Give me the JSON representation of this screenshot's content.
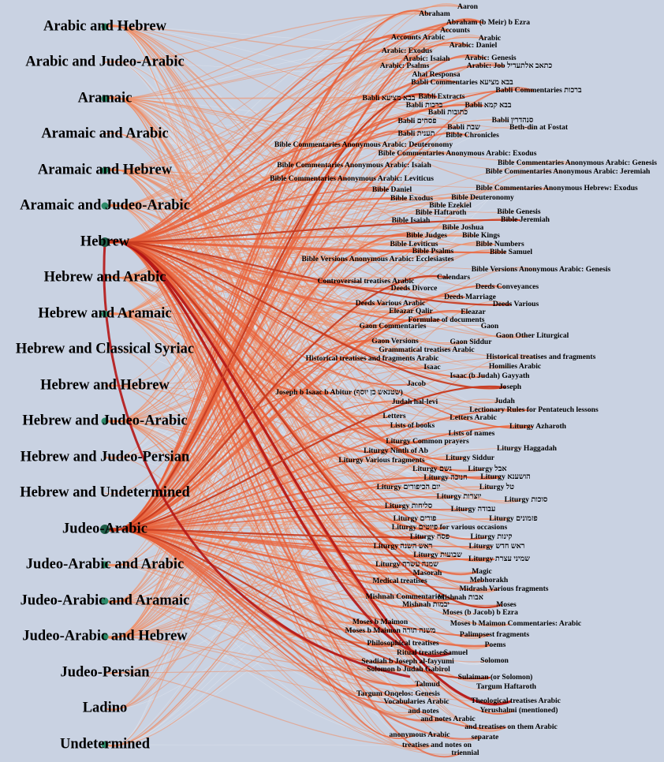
{
  "languages": [
    {
      "label": "Arabic and Hebrew",
      "size": "s"
    },
    {
      "label": "Arabic and Judeo-Arabic",
      "size": "none"
    },
    {
      "label": "Aramaic",
      "size": "s"
    },
    {
      "label": "Aramaic and Arabic",
      "size": "none"
    },
    {
      "label": "Aramaic and Hebrew",
      "size": "s"
    },
    {
      "label": "Aramaic and Judeo-Arabic",
      "size": "s"
    },
    {
      "label": "Hebrew",
      "size": "l"
    },
    {
      "label": "Hebrew and Arabic",
      "size": "none"
    },
    {
      "label": "Hebrew and Aramaic",
      "size": "s"
    },
    {
      "label": "Hebrew and Classical Syriac",
      "size": "none"
    },
    {
      "label": "Hebrew and Hebrew",
      "size": "none"
    },
    {
      "label": "Hebrew and Judeo-Arabic",
      "size": "s"
    },
    {
      "label": "Hebrew and Judeo-Persian",
      "size": "none"
    },
    {
      "label": "Hebrew and Undetermined",
      "size": "none"
    },
    {
      "label": "Judeo-Arabic",
      "size": "l"
    },
    {
      "label": "Judeo-Arabic and Arabic",
      "size": "s"
    },
    {
      "label": "Judeo-Arabic and Aramaic",
      "size": "s"
    },
    {
      "label": "Judeo-Arabic and Hebrew",
      "size": "s"
    },
    {
      "label": "Judeo-Persian",
      "size": "none"
    },
    {
      "label": "Ladino",
      "size": "none"
    },
    {
      "label": "Undetermined",
      "size": "s"
    }
  ],
  "subjects": [
    "Aaron",
    "Abraham",
    "Abraham (b Meir) b Ezra",
    "Accounts",
    "Accounts Arabic",
    "Arabic",
    "Arabic: Daniel",
    "Arabic: Exodus",
    "Arabic: Isaiah",
    "Arabic: Genesis",
    "Arabic: Psalms",
    "Arabic: Job כתאב אלתעדיל",
    "Ahai Responsa",
    "Babli Commentaries בבא מציעא",
    "Babli Commentaries ברכות",
    "Babli בבא מציעא",
    "Babli Extracts",
    "Babli ברכות",
    "Babli בבא קמא",
    "Babli כתובות",
    "Babli פסחים",
    "Babli סנהדרין",
    "Babli שבת",
    "Beth-din at Fostat",
    "Babli תענית",
    "Bible Chronicles",
    "Bible Commentaries Anonymous Arabic: Deuteronomy",
    "Bible Commentaries Anonymous Arabic: Exodus",
    "Bible Commentaries Anonymous Arabic: Isaiah",
    "Bible Commentaries Anonymous Arabic: Genesis",
    "Bible Commentaries Anonymous Arabic: Jeremiah",
    "Bible Commentaries Anonymous Arabic: Leviticus",
    "Bible Daniel",
    "Bible Commentaries Anonymous Hebrew: Exodus",
    "Bible Exodus",
    "Bible Deuteronomy",
    "Bible Ezekiel",
    "Bible Haftaroth",
    "Bible Genesis",
    "Bible Isaiah",
    "Bible Jeremiah",
    "Bible Joshua",
    "Bible Judges",
    "Bible Kings",
    "Bible Leviticus",
    "Bible Numbers",
    "Bible Psalms",
    "Bible Samuel",
    "Bible Versions Anonymous Arabic: Ecclesiastes",
    "Bible Versions Anonymous Arabic: Genesis",
    "Calendars",
    "Controversial treatises Arabic",
    "Deeds Conveyances",
    "Deeds Divorce",
    "Deeds Marriage",
    "Deeds Various Arabic",
    "Deeds Various",
    "Eleazar Qalir",
    "Eleazar",
    "Formulae of documents",
    "Gaon Commentaries",
    "Gaon",
    "Gaon Other Liturgical",
    "Gaon Versions",
    "Gaon Siddur",
    "Grammatical treatises Arabic",
    "Historical treatises and fragments Arabic",
    "Historical treatises and fragments",
    "Isaac",
    "Homilies Arabic",
    "Isaac (b Judah) Gayyath",
    "Jacob",
    "Joseph",
    "Joseph b Isaac b Abitur (שטנאש בן יוסף)",
    "Judah hal-levi",
    "Judah",
    "Lectionary Rules for Pentateuch lessons",
    "Letters",
    "Letters Arabic",
    "Lists of books",
    "Liturgy Azharoth",
    "Lists of names",
    "Liturgy Common prayers",
    "Liturgy Haggadah",
    "Liturgy Ninth of Ab",
    "Liturgy Various fragments",
    "Liturgy Siddur",
    "Liturgy גשם",
    "Liturgy אבל",
    "Liturgy חנוכה",
    "Liturgy הושענא",
    "Liturgy יום הכיפורים",
    "Liturgy טל",
    "Liturgy יוצרות",
    "Liturgy סוכות",
    "Liturgy סליחות",
    "Liturgy עבודה",
    "Liturgy פורים",
    "Liturgy פזמונים",
    "Liturgy פיוטים for various occasions",
    "Liturgy פסח",
    "Liturgy קינות",
    "Liturgy ראש השנה",
    "Liturgy ראש חדש",
    "Liturgy שבועות",
    "Liturgy שמיני עצרת",
    "Liturgy שמנה עשרה",
    "Magic",
    "Masorah",
    "Mebhorakh",
    "Medical treatises",
    "Midrash Various fragments",
    "Mishnah Commentaries",
    "Mishnah אבות",
    "Mishnah יבמות",
    "Moses",
    "Moses (b Jacob) b Ezra",
    "Moses b Maimon",
    "Moses b Maimon Commentaries: Arabic",
    "Moses b Maimon משנה תורה",
    "Palimpsest fragments",
    "Philosophical treatises",
    "Poems",
    "Ritual treatises",
    "Samuel",
    "Seadiah b Joseph al-fayyumi",
    "Solomon",
    "Solomon b Judah Gabirol",
    "Sulaiman (or Solomon)",
    "Talmud",
    "Targum Haftaroth",
    "Targum Onqelos: Genesis",
    "Theological treatises Arabic",
    "Vocabularies Arabic",
    "Yerushalmi (mentioned)",
    "and notes",
    "and notes Arabic",
    "and treatises on them Arabic",
    "anonymous Arabic",
    "separate",
    "treatises and notes on",
    "triennial"
  ],
  "colors": {
    "background": "#c9d2e2",
    "edge_light": "#f08a60",
    "edge_mid": "#e8603a",
    "edge_dark": "#b51515",
    "node": "#2e8b6a",
    "node_dark": "#1f5e47"
  }
}
